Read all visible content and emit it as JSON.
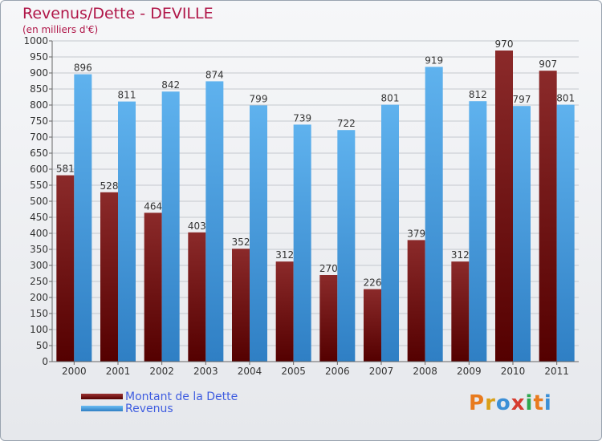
{
  "chart_data": {
    "type": "bar",
    "title": "Revenus/Dette - DEVILLE",
    "subtitle": "(en milliers d'€)",
    "categories": [
      "2000",
      "2001",
      "2002",
      "2003",
      "2004",
      "2005",
      "2006",
      "2007",
      "2008",
      "2009",
      "2010",
      "2011"
    ],
    "series": [
      {
        "name": "Montant de la Dette",
        "color": "#7d1214",
        "values": [
          581,
          528,
          464,
          403,
          352,
          312,
          270,
          226,
          379,
          312,
          970,
          907
        ]
      },
      {
        "name": "Revenus",
        "color": "#4da7e8",
        "values": [
          896,
          811,
          842,
          874,
          799,
          739,
          722,
          801,
          919,
          812,
          797,
          801
        ]
      }
    ],
    "ylim": [
      0,
      1000
    ],
    "ytick_step": 50,
    "grid": true,
    "legend_position": "bottom-left"
  },
  "logo": {
    "text": "Proxiti"
  }
}
